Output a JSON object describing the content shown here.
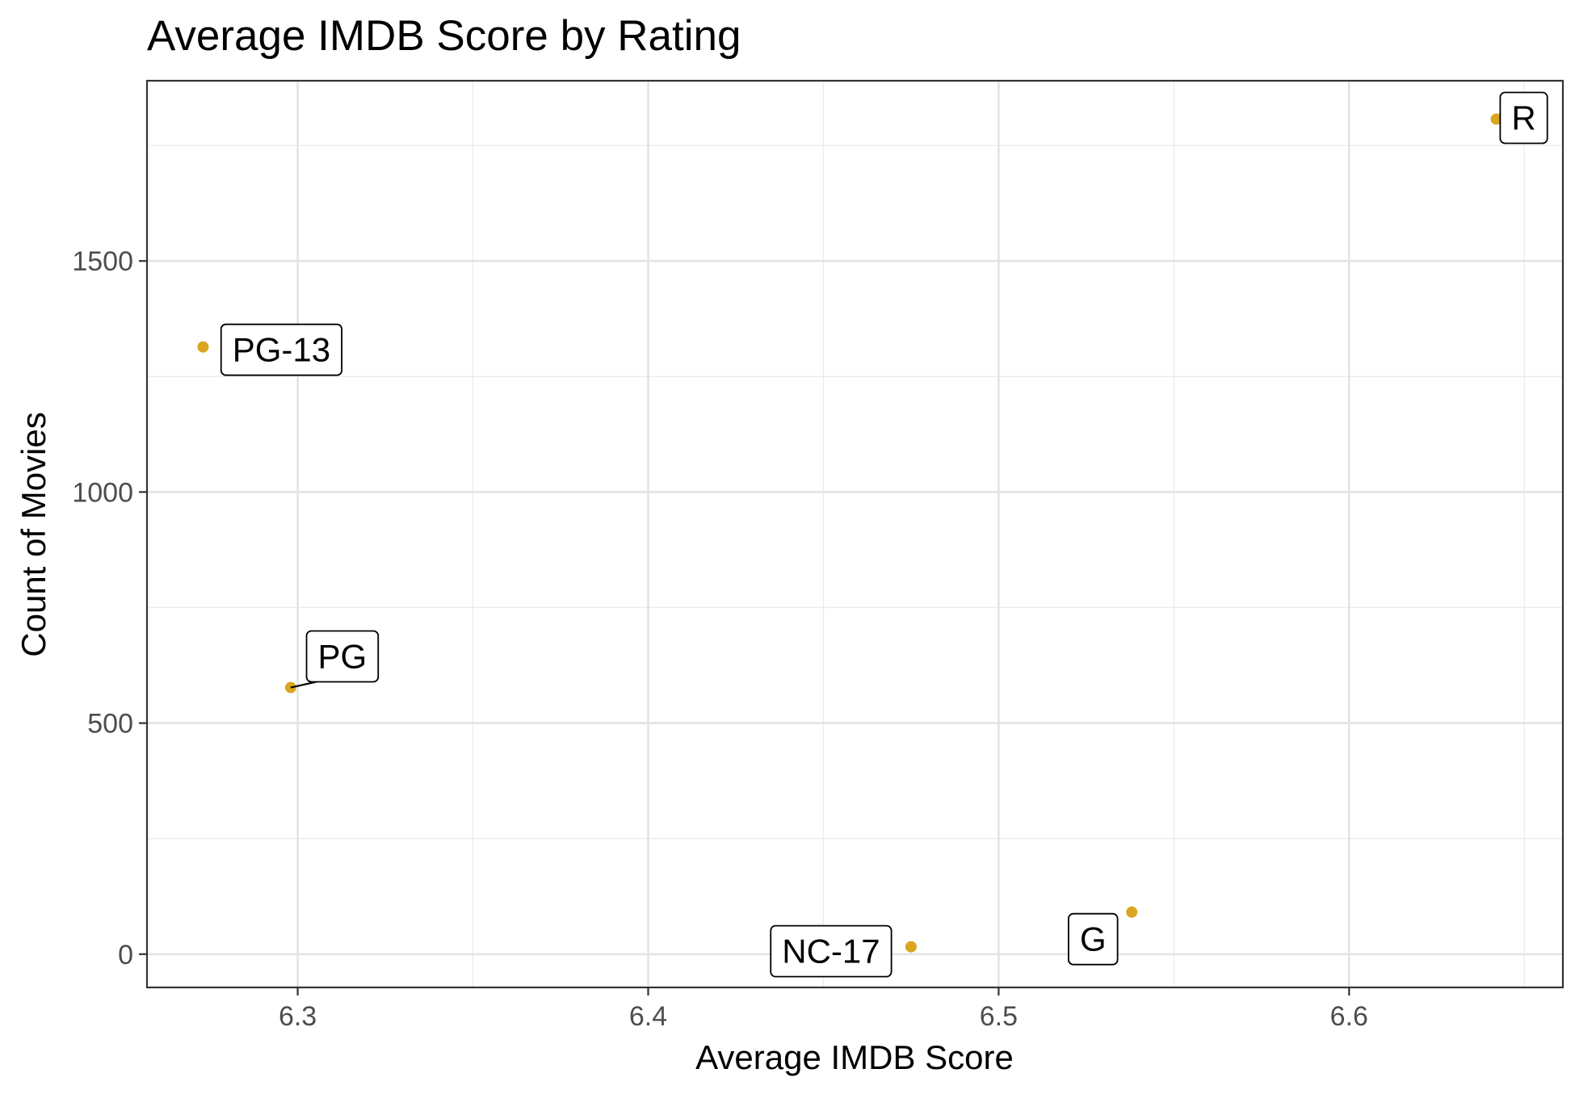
{
  "chart_data": {
    "type": "scatter",
    "title": "Average IMDB Score by Rating",
    "xlabel": "Average IMDB Score",
    "ylabel": "Count of Movies",
    "xlim": [
      6.257,
      6.661
    ],
    "ylim": [
      -72,
      1890
    ],
    "xticks": [
      6.3,
      6.4,
      6.5,
      6.6
    ],
    "xtick_labels": [
      "6.3",
      "6.4",
      "6.5",
      "6.6"
    ],
    "yticks": [
      0,
      500,
      1000,
      1500
    ],
    "ytick_labels": [
      "0",
      "500",
      "1000",
      "1500"
    ],
    "grid": true,
    "theme": "bw",
    "point_color": "#DAA520",
    "points": [
      {
        "label": "R",
        "x": 6.642,
        "y": 1807
      },
      {
        "label": "PG-13",
        "x": 6.273,
        "y": 1314
      },
      {
        "label": "PG",
        "x": 6.298,
        "y": 577
      },
      {
        "label": "NC-17",
        "x": 6.475,
        "y": 16
      },
      {
        "label": "G",
        "x": 6.538,
        "y": 91
      }
    ]
  }
}
